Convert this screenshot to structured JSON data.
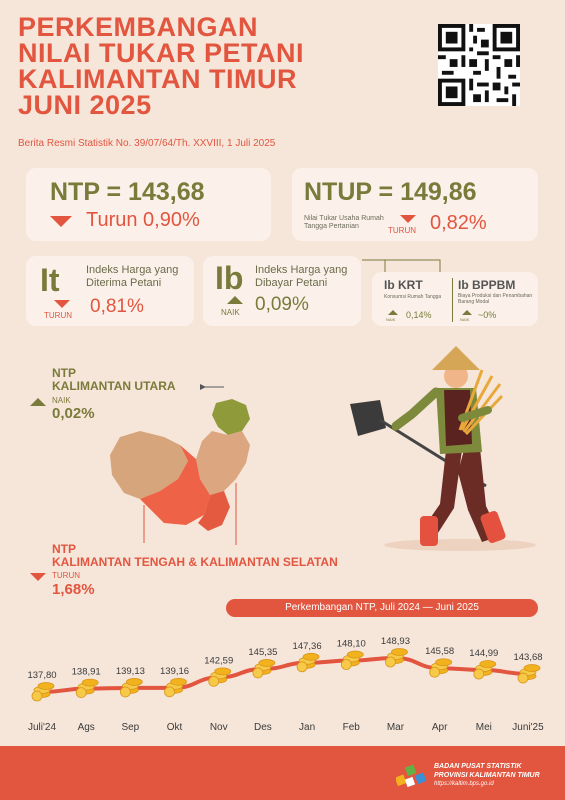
{
  "header": {
    "title_lines": [
      "PERKEMBANGAN",
      "NILAI TUKAR PETANI",
      "KALIMANTAN TIMUR",
      "JUNI 2025"
    ],
    "subtitle": "Berita Resmi Statistik No. 39/07/64/Th. XXVIII, 1 Juli 2025"
  },
  "ntp": {
    "label": "NTP = 143,68",
    "change": "Turun 0,90%"
  },
  "ntup": {
    "label": "NTUP = 149,86",
    "desc": "Nilai Tukar Usaha Rumah Tangga Pertanian",
    "dir": "TURUN",
    "change": "0,82%"
  },
  "it": {
    "symbol": "It",
    "desc": "Indeks Harga yang Diterima Petani",
    "dir": "TURUN",
    "change": "0,81%"
  },
  "ib": {
    "symbol": "Ib",
    "desc": "Indeks Harga yang Dibayar Petani",
    "dir": "NAIK",
    "change": "0,09%"
  },
  "ibkrt": {
    "title": "Ib KRT",
    "desc": "Konsumsi Rumah Tangga",
    "dir": "NAIK",
    "change": "0,14%"
  },
  "ibbppbm": {
    "title": "Ib BPPBM",
    "desc": "Biaya Produksi dan Penambahan Barang Modal",
    "dir": "NAIK",
    "change": "~0%"
  },
  "kaltara": {
    "ntp": "NTP",
    "name": "KALIMANTAN UTARA",
    "dir": "NAIK",
    "change": "0,02%"
  },
  "kalteng": {
    "ntp": "NTP",
    "name": "KALIMANTAN TENGAH & KALIMANTAN SELATAN",
    "dir": "TURUN",
    "change": "1,68%"
  },
  "footer": {
    "org1": "BADAN PUSAT STATISTIK",
    "org2": "PROVINSI KALIMANTAN TIMUR",
    "url": "https://kaltim.bps.go.id"
  },
  "colors": {
    "accent": "#e2553f",
    "olive": "#7a7a3a",
    "background": "#f6e6da",
    "gold": "#f2b21d"
  },
  "chart_data": {
    "type": "line",
    "title": "Perkembangan NTP, Juli 2024 — Juni 2025",
    "categories": [
      "Juli'24",
      "Ags",
      "Sep",
      "Okt",
      "Nov",
      "Des",
      "Jan",
      "Feb",
      "Mar",
      "Apr",
      "Mei",
      "Juni'25"
    ],
    "values": [
      137.8,
      138.91,
      139.13,
      139.16,
      142.59,
      145.35,
      147.36,
      148.1,
      148.93,
      145.58,
      144.99,
      143.68
    ],
    "value_labels": [
      "137,80",
      "138,91",
      "139,13",
      "139,16",
      "142,59",
      "145,35",
      "147,36",
      "148,10",
      "148,93",
      "145,58",
      "144,99",
      "143,68"
    ],
    "xlabel": "",
    "ylabel": "",
    "ylim": [
      130,
      160
    ],
    "grid": false
  }
}
